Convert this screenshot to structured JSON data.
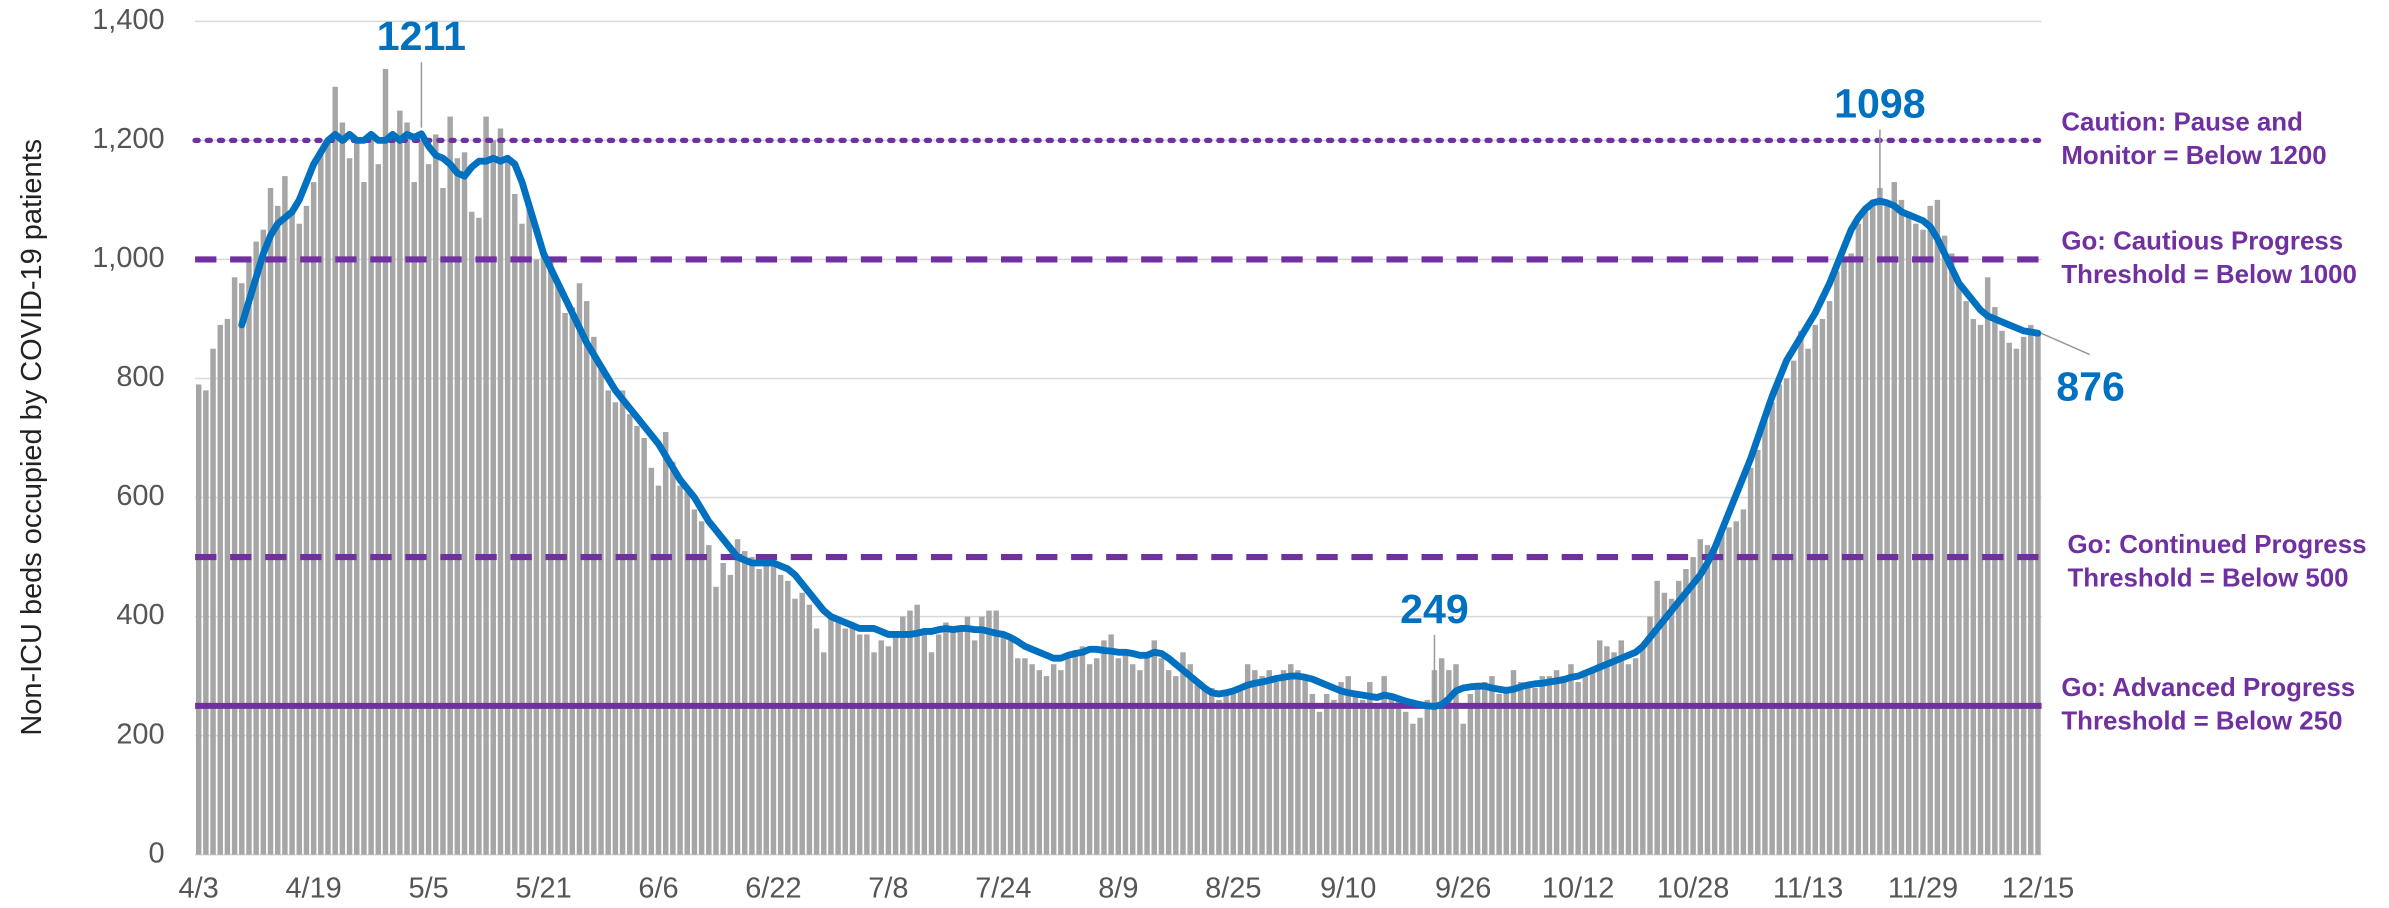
{
  "chart_data": {
    "type": "bar",
    "y_label": "Non-ICU beds occupied by COVID-19 patients",
    "ylim": [
      0,
      1400
    ],
    "yticks": [
      0,
      200,
      400,
      600,
      800,
      {
        "value": 1000,
        "label": "1,000"
      },
      {
        "value": 1200,
        "label": "1,200"
      },
      {
        "value": 1400,
        "label": "1,400"
      }
    ],
    "grid": true,
    "categories": [
      "4/3",
      null,
      null,
      null,
      null,
      null,
      null,
      null,
      null,
      null,
      null,
      null,
      null,
      null,
      null,
      null,
      "4/19",
      null,
      null,
      null,
      null,
      null,
      null,
      null,
      null,
      null,
      null,
      null,
      null,
      null,
      null,
      null,
      "5/5",
      null,
      null,
      null,
      null,
      null,
      null,
      null,
      null,
      null,
      null,
      null,
      null,
      null,
      null,
      null,
      "5/21",
      null,
      null,
      null,
      null,
      null,
      null,
      null,
      null,
      null,
      null,
      null,
      null,
      null,
      null,
      null,
      "6/6",
      null,
      null,
      null,
      null,
      null,
      null,
      null,
      null,
      null,
      null,
      null,
      null,
      null,
      null,
      null,
      "6/22",
      null,
      null,
      null,
      null,
      null,
      null,
      null,
      null,
      null,
      null,
      null,
      null,
      null,
      null,
      null,
      "7/8",
      null,
      null,
      null,
      null,
      null,
      null,
      null,
      null,
      null,
      null,
      null,
      null,
      null,
      null,
      null,
      "7/24",
      null,
      null,
      null,
      null,
      null,
      null,
      null,
      null,
      null,
      null,
      null,
      null,
      null,
      null,
      null,
      "8/9",
      null,
      null,
      null,
      null,
      null,
      null,
      null,
      null,
      null,
      null,
      null,
      null,
      null,
      null,
      null,
      "8/25",
      null,
      null,
      null,
      null,
      null,
      null,
      null,
      null,
      null,
      null,
      null,
      null,
      null,
      null,
      null,
      "9/10",
      null,
      null,
      null,
      null,
      null,
      null,
      null,
      null,
      null,
      null,
      null,
      null,
      null,
      null,
      null,
      "9/26",
      null,
      null,
      null,
      null,
      null,
      null,
      null,
      null,
      null,
      null,
      null,
      null,
      null,
      null,
      null,
      "10/12",
      null,
      null,
      null,
      null,
      null,
      null,
      null,
      null,
      null,
      null,
      null,
      null,
      null,
      null,
      null,
      "10/28",
      null,
      null,
      null,
      null,
      null,
      null,
      null,
      null,
      null,
      null,
      null,
      null,
      null,
      null,
      null,
      "11/13",
      null,
      null,
      null,
      null,
      null,
      null,
      null,
      null,
      null,
      null,
      null,
      null,
      null,
      null,
      null,
      "11/29",
      null,
      null,
      null,
      null,
      null,
      null,
      null,
      null,
      null,
      null,
      null,
      null,
      null,
      null,
      null,
      "12/15"
    ],
    "series": [
      {
        "type": "bar",
        "color": "#a6a6a6",
        "values": [
          790,
          780,
          850,
          890,
          900,
          970,
          960,
          1000,
          1030,
          1050,
          1120,
          1090,
          1140,
          1080,
          1060,
          1090,
          1130,
          1180,
          1200,
          1290,
          1230,
          1170,
          1200,
          1130,
          1210,
          1160,
          1320,
          1200,
          1250,
          1230,
          1130,
          1200,
          1160,
          1210,
          1120,
          1240,
          1170,
          1180,
          1080,
          1070,
          1240,
          1200,
          1220,
          1170,
          1110,
          1060,
          1090,
          1000,
          1010,
          1000,
          960,
          910,
          920,
          960,
          930,
          870,
          820,
          780,
          760,
          780,
          740,
          720,
          700,
          650,
          620,
          710,
          660,
          620,
          610,
          580,
          560,
          520,
          450,
          490,
          470,
          530,
          510,
          500,
          480,
          490,
          490,
          470,
          460,
          430,
          440,
          420,
          380,
          340,
          400,
          390,
          380,
          390,
          370,
          370,
          340,
          360,
          350,
          370,
          400,
          410,
          420,
          380,
          340,
          370,
          390,
          380,
          380,
          400,
          360,
          400,
          410,
          410,
          370,
          360,
          330,
          330,
          320,
          310,
          300,
          320,
          310,
          330,
          340,
          350,
          320,
          330,
          360,
          370,
          330,
          340,
          320,
          310,
          340,
          360,
          330,
          310,
          300,
          340,
          320,
          290,
          280,
          280,
          260,
          270,
          270,
          280,
          320,
          310,
          300,
          310,
          290,
          310,
          320,
          310,
          300,
          270,
          240,
          270,
          260,
          290,
          300,
          270,
          260,
          290,
          250,
          300,
          270,
          260,
          240,
          220,
          230,
          260,
          310,
          330,
          310,
          320,
          220,
          270,
          280,
          290,
          300,
          270,
          280,
          310,
          290,
          290,
          280,
          300,
          300,
          310,
          300,
          320,
          290,
          310,
          310,
          360,
          350,
          340,
          360,
          320,
          330,
          350,
          400,
          460,
          440,
          430,
          460,
          480,
          500,
          530,
          520,
          510,
          540,
          550,
          560,
          580,
          650,
          680,
          730,
          760,
          790,
          800,
          830,
          880,
          850,
          890,
          900,
          930,
          980,
          1000,
          1010,
          1060,
          1080,
          1100,
          1120,
          1090,
          1130,
          1100,
          1080,
          1060,
          1050,
          1090,
          1100,
          1040,
          1010,
          960,
          930,
          900,
          890,
          970,
          920,
          880,
          860,
          850,
          870,
          890,
          880
        ]
      },
      {
        "type": "line",
        "color": "#0070c0",
        "values": [
          null,
          null,
          null,
          null,
          null,
          null,
          890,
          930,
          970,
          1010,
          1040,
          1060,
          1070,
          1080,
          1100,
          1130,
          1160,
          1180,
          1200,
          1210,
          1200,
          1210,
          1200,
          1200,
          1210,
          1200,
          1200,
          1210,
          1200,
          1210,
          1205,
          1211,
          1190,
          1175,
          1170,
          1160,
          1145,
          1140,
          1155,
          1165,
          1165,
          1170,
          1165,
          1170,
          1160,
          1130,
          1090,
          1050,
          1010,
          985,
          960,
          935,
          910,
          885,
          860,
          840,
          820,
          800,
          780,
          765,
          750,
          735,
          720,
          705,
          690,
          670,
          650,
          630,
          615,
          600,
          580,
          560,
          545,
          530,
          515,
          500,
          495,
          490,
          490,
          490,
          490,
          485,
          480,
          470,
          455,
          440,
          425,
          410,
          400,
          395,
          390,
          385,
          380,
          380,
          380,
          375,
          370,
          370,
          370,
          370,
          372,
          375,
          375,
          378,
          380,
          378,
          380,
          380,
          378,
          378,
          375,
          372,
          370,
          365,
          358,
          350,
          345,
          340,
          335,
          330,
          330,
          335,
          338,
          340,
          345,
          345,
          343,
          342,
          340,
          340,
          338,
          335,
          335,
          340,
          338,
          330,
          320,
          310,
          300,
          290,
          280,
          272,
          270,
          272,
          275,
          280,
          285,
          288,
          290,
          293,
          296,
          298,
          300,
          300,
          298,
          295,
          290,
          285,
          280,
          275,
          272,
          270,
          268,
          266,
          264,
          268,
          266,
          262,
          258,
          255,
          252,
          250,
          249,
          252,
          262,
          275,
          280,
          282,
          283,
          283,
          280,
          278,
          276,
          278,
          282,
          285,
          287,
          288,
          290,
          292,
          294,
          298,
          300,
          305,
          310,
          315,
          320,
          325,
          330,
          335,
          340,
          350,
          365,
          380,
          395,
          410,
          425,
          440,
          455,
          470,
          490,
          515,
          545,
          575,
          605,
          635,
          665,
          700,
          735,
          770,
          800,
          830,
          850,
          870,
          890,
          910,
          935,
          960,
          990,
          1020,
          1050,
          1070,
          1085,
          1095,
          1098,
          1095,
          1090,
          1080,
          1075,
          1070,
          1065,
          1055,
          1035,
          1010,
          985,
          960,
          945,
          930,
          915,
          905,
          900,
          895,
          890,
          885,
          880,
          878,
          876
        ]
      }
    ],
    "annotations": [
      1211,
      1098,
      249,
      876
    ],
    "annotation_color": "#0070c0",
    "threshold_color": "#7030a0",
    "thresholds": [
      {
        "value": 1200,
        "style": "dotted",
        "label": [
          "Caution: Pause and",
          "Monitor = Below 1200"
        ]
      },
      {
        "value": 1000,
        "style": "dashed",
        "label": [
          "Go: Cautious Progress",
          "Threshold = Below 1000"
        ]
      },
      {
        "value": 500,
        "style": "dashed",
        "label": [
          "Go: Continued Progress",
          "Threshold = Below 500"
        ]
      },
      {
        "value": 250,
        "style": "solid",
        "label": [
          "Go: Advanced Progress",
          "Threshold = Below 250"
        ]
      }
    ]
  }
}
